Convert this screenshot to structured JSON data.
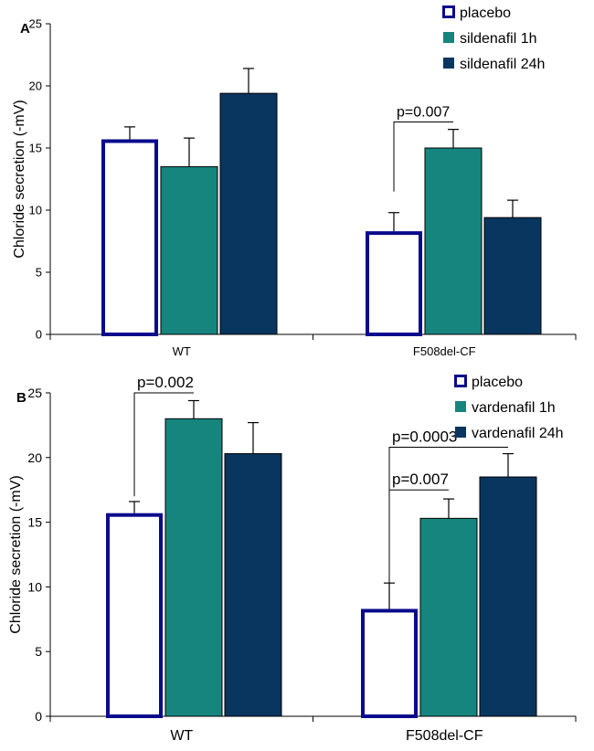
{
  "figure": {
    "name": "chloride-secretion-figure"
  },
  "chart_data": [
    {
      "type": "bar",
      "panel_label": "A",
      "title": "",
      "xlabel": "",
      "ylabel": "Chloride secretion (-mV)",
      "ylim": [
        0,
        25
      ],
      "yticks": [
        0,
        5,
        10,
        15,
        20,
        25
      ],
      "categories": [
        "WT",
        "F508del-CF"
      ],
      "series": [
        {
          "name": "placebo",
          "values": [
            15.7,
            8.3
          ],
          "errors": [
            1.0,
            1.5
          ],
          "fill": "#ffffff",
          "stroke": "#0a0a8c"
        },
        {
          "name": "sildenafil 1h",
          "values": [
            13.5,
            15.0
          ],
          "errors": [
            2.3,
            1.5
          ],
          "fill": "#16857e",
          "stroke": "#000000"
        },
        {
          "name": "sildenafil 24h",
          "values": [
            19.4,
            9.4
          ],
          "errors": [
            2.0,
            1.4
          ],
          "fill": "#08365f",
          "stroke": "#000000"
        }
      ],
      "legend": "top-right",
      "annotations": [
        {
          "text": "p=0.007",
          "category": 1,
          "from": 0,
          "to": 1,
          "level": 17.1,
          "drop_to": 11.5
        }
      ]
    },
    {
      "type": "bar",
      "panel_label": "B",
      "title": "",
      "xlabel": "",
      "ylabel": "Chloride secretion (-mV)",
      "ylim": [
        0,
        25
      ],
      "yticks": [
        0,
        5,
        10,
        15,
        20,
        25
      ],
      "categories": [
        "WT",
        "F508del-CF"
      ],
      "series": [
        {
          "name": "placebo",
          "values": [
            15.7,
            8.3
          ],
          "errors": [
            0.9,
            2.0
          ],
          "fill": "#ffffff",
          "stroke": "#0a0a8c"
        },
        {
          "name": "vardenafil 1h",
          "values": [
            23.0,
            15.3
          ],
          "errors": [
            1.4,
            1.5
          ],
          "fill": "#16857e",
          "stroke": "#000000"
        },
        {
          "name": "vardenafil 24h",
          "values": [
            20.3,
            18.5
          ],
          "errors": [
            2.4,
            1.8
          ],
          "fill": "#08365f",
          "stroke": "#000000"
        }
      ],
      "legend": "top-right",
      "annotations": [
        {
          "text": "p=0.002",
          "category": 0,
          "from": 0,
          "to": 1,
          "level": 25.0,
          "drop_to": 17.0
        },
        {
          "text": "p=0.0003",
          "category": 1,
          "from": 0,
          "to": 2,
          "level": 20.8,
          "drop_to": 10.0
        },
        {
          "text": "p=0.007",
          "category": 1,
          "from": 0,
          "to": 1,
          "level": 17.5,
          "drop_to": 10.0
        }
      ]
    }
  ]
}
